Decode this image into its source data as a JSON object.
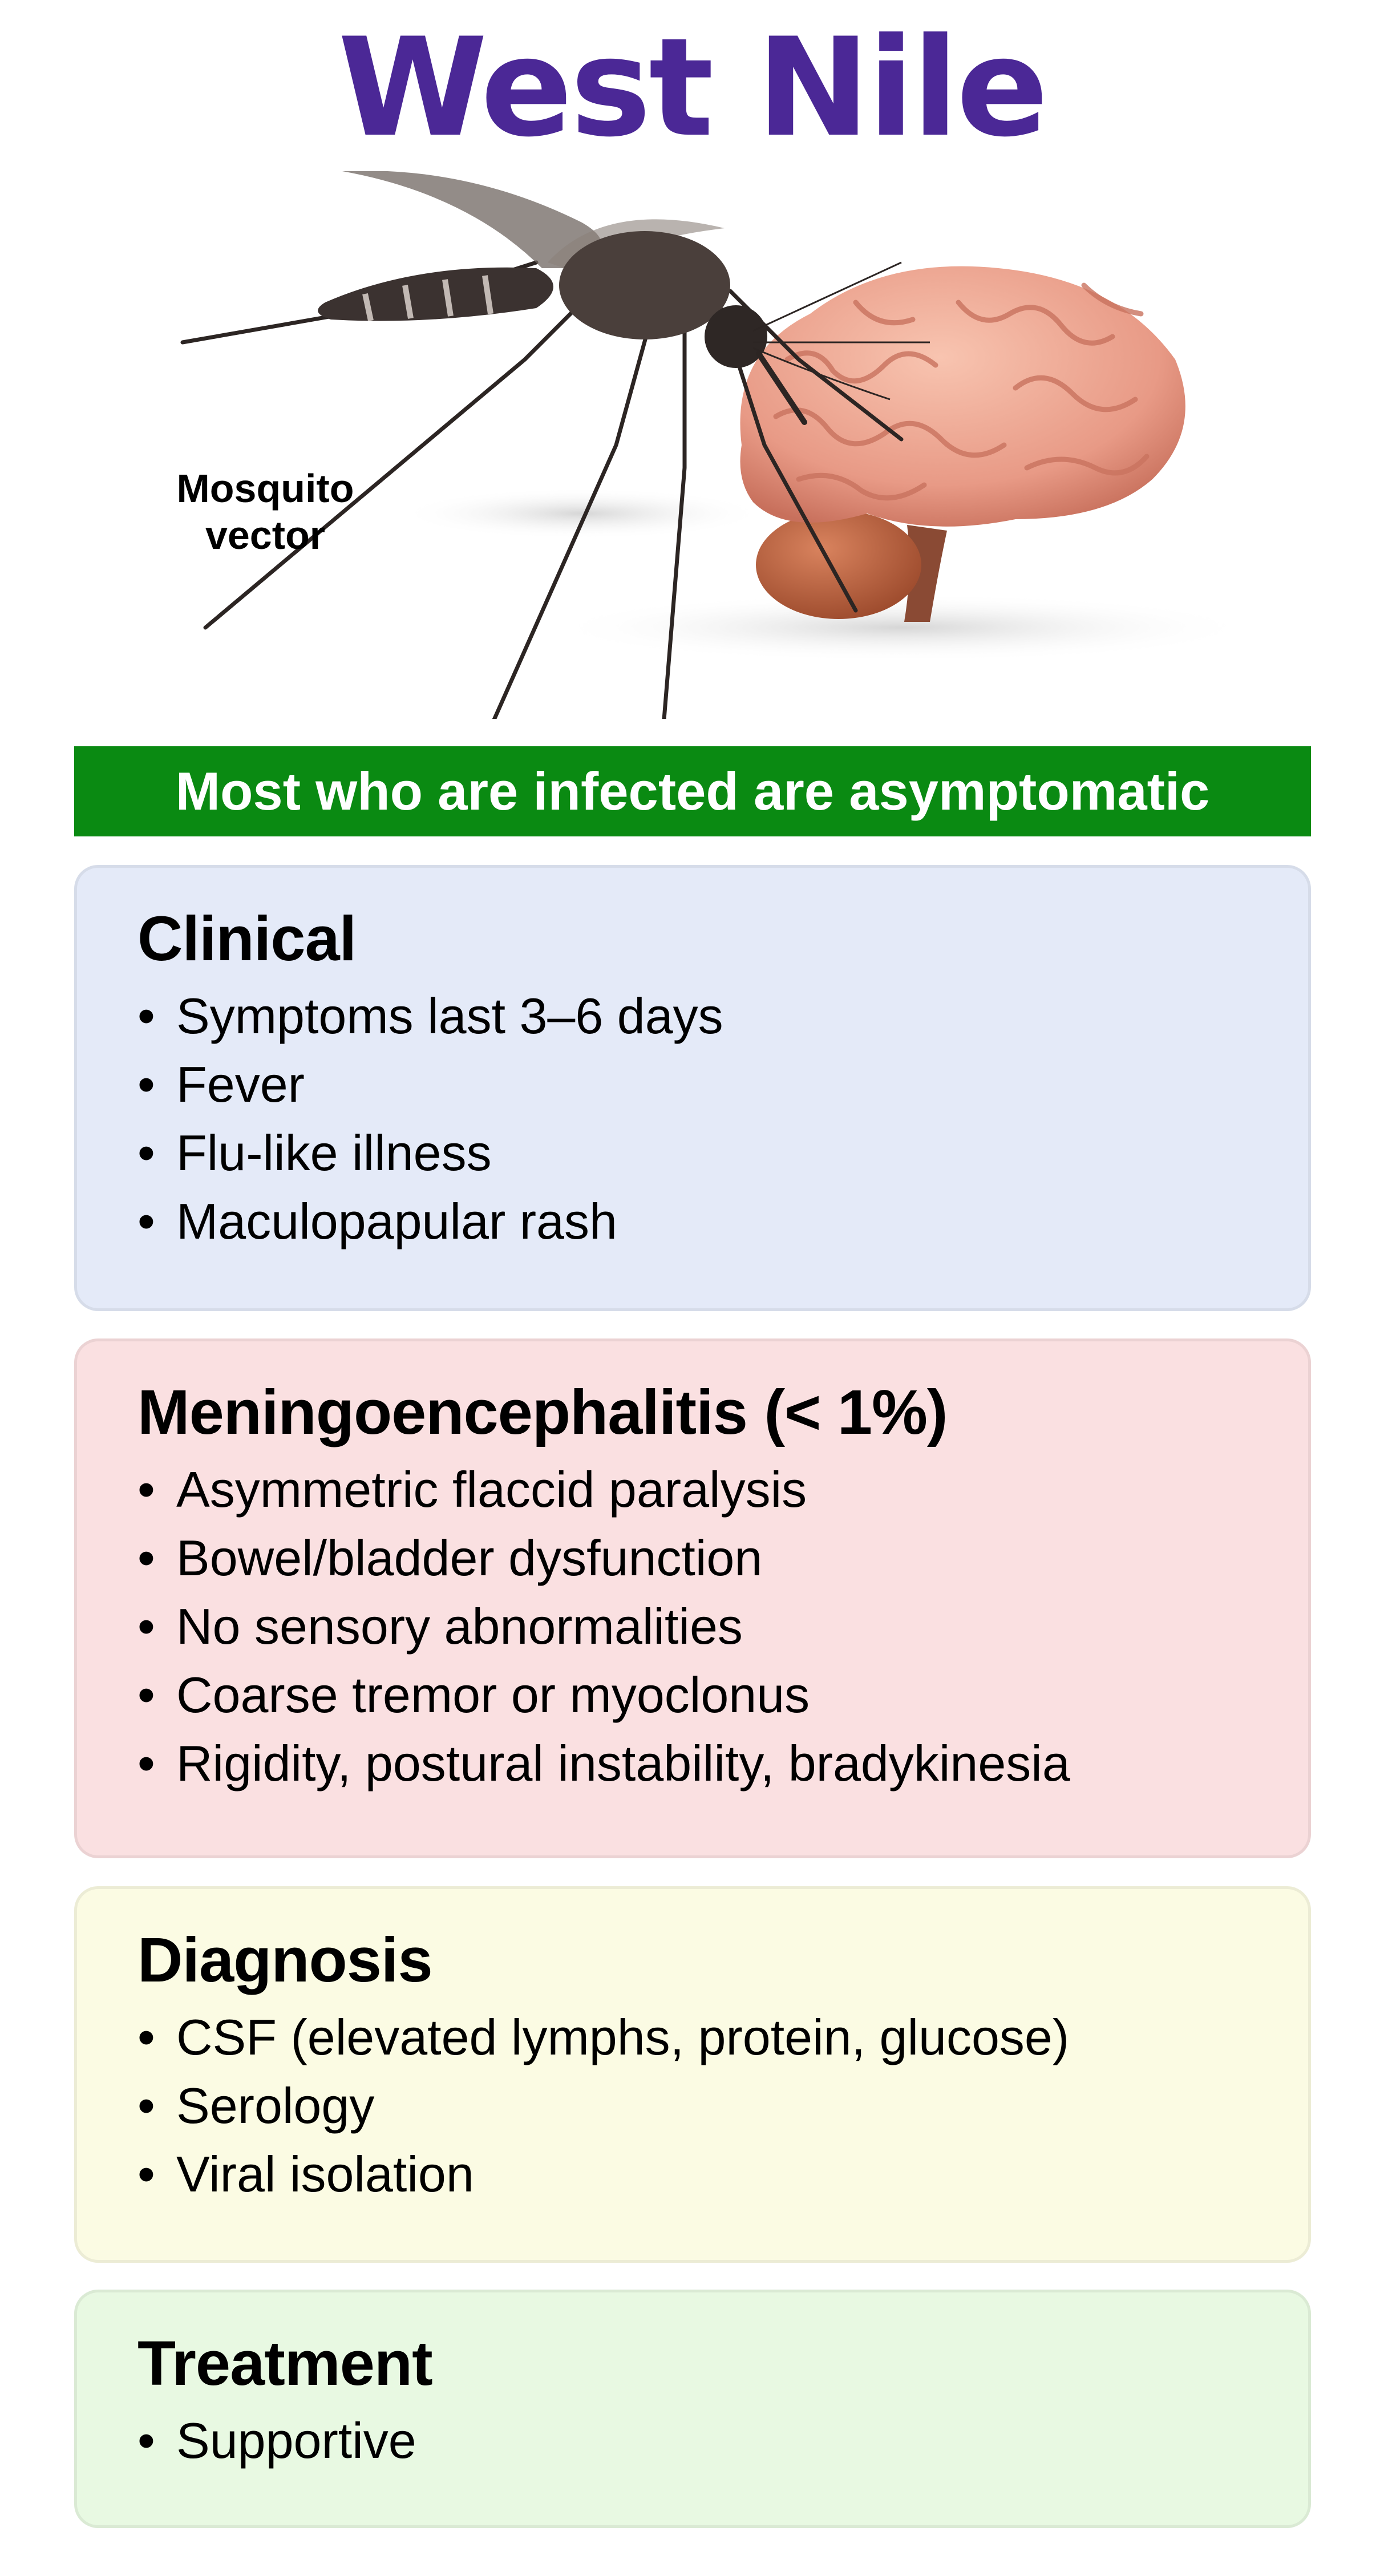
{
  "title": "West Nile",
  "vector_label": "Mosquito\nvector",
  "banner": "Most who are infected are asymptomatic",
  "bullet": "•",
  "colors": {
    "title": "#4b2896",
    "banner": "#0a8a12",
    "clinical_bg": "#e4eaf8",
    "meningo_bg": "#fae0e1",
    "diagnosis_bg": "#fbfbe3",
    "treatment_bg": "#e8f9e2"
  },
  "sections": {
    "clinical": {
      "heading": "Clinical",
      "items": [
        "Symptoms last 3–6 days",
        "Fever",
        "Flu-like illness",
        "Maculopapular rash"
      ]
    },
    "meningoencephalitis": {
      "heading": "Meningoencephalitis (< 1%)",
      "items": [
        "Asymmetric flaccid paralysis",
        "Bowel/bladder dysfunction",
        "No sensory abnormalities",
        "Coarse tremor or myoclonus",
        "Rigidity, postural instability, bradykinesia"
      ]
    },
    "diagnosis": {
      "heading": "Diagnosis",
      "items": [
        "CSF (elevated lymphs, protein, glucose)",
        "Serology",
        "Viral isolation"
      ]
    },
    "treatment": {
      "heading": "Treatment",
      "items": [
        "Supportive"
      ]
    }
  }
}
